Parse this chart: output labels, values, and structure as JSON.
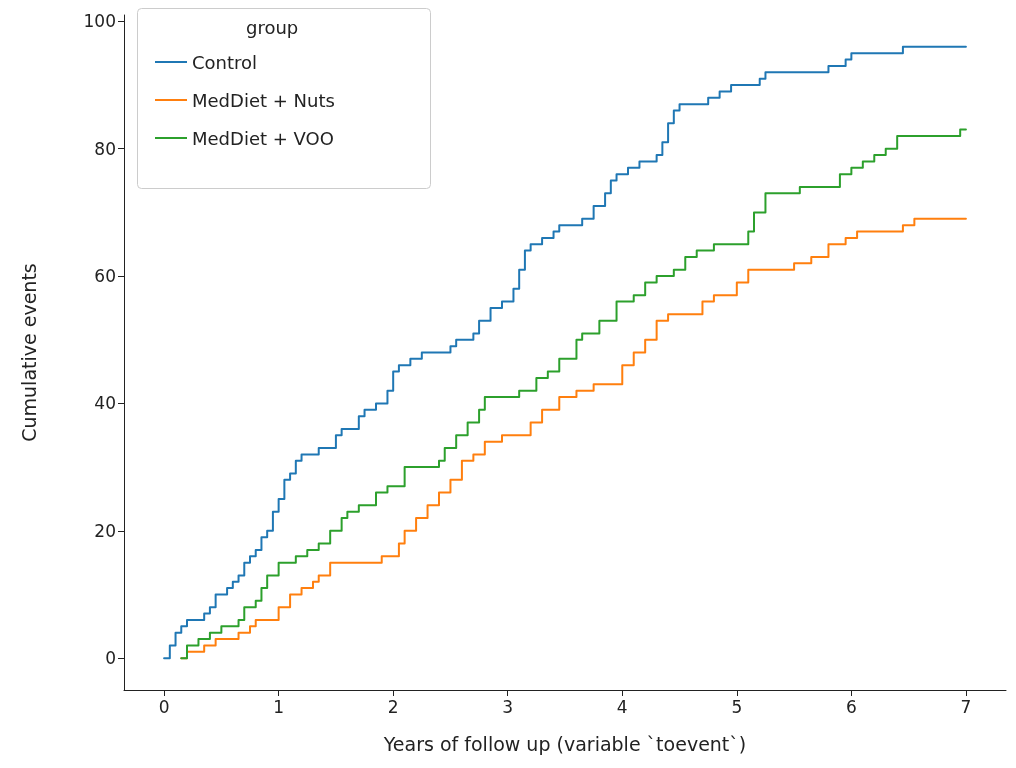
{
  "chart_data": {
    "type": "step",
    "xlabel": "Years of follow up (variable `toevent`)",
    "ylabel": "Cumulative events",
    "legend_title": "group",
    "legend": "top left",
    "grid": false,
    "marker": "none",
    "line_style": "solid",
    "xlim": [
      -0.35,
      7.35
    ],
    "ylim": [
      -5,
      101
    ],
    "xticks": [
      0,
      1,
      2,
      3,
      4,
      5,
      6,
      7
    ],
    "yticks": [
      0,
      20,
      40,
      60,
      80,
      100
    ],
    "series": [
      {
        "name": "Control",
        "color": "#1f77b4",
        "x": [
          0,
          0.05,
          0.1,
          0.15,
          0.2,
          0.35,
          0.4,
          0.45,
          0.55,
          0.6,
          0.65,
          0.7,
          0.75,
          0.8,
          0.85,
          0.9,
          0.95,
          1.0,
          1.05,
          1.1,
          1.15,
          1.2,
          1.35,
          1.5,
          1.55,
          1.7,
          1.75,
          1.85,
          1.95,
          2.0,
          2.05,
          2.15,
          2.25,
          2.5,
          2.55,
          2.7,
          2.75,
          2.85,
          2.95,
          3.05,
          3.1,
          3.15,
          3.2,
          3.3,
          3.4,
          3.45,
          3.65,
          3.75,
          3.85,
          3.9,
          3.95,
          4.05,
          4.15,
          4.3,
          4.35,
          4.4,
          4.45,
          4.5,
          4.75,
          4.85,
          4.95,
          5.2,
          5.25,
          5.8,
          5.95,
          6.0,
          6.45,
          7
        ],
        "values": [
          0,
          2,
          4,
          5,
          6,
          7,
          8,
          10,
          11,
          12,
          13,
          15,
          16,
          17,
          19,
          20,
          23,
          25,
          28,
          29,
          31,
          32,
          33,
          35,
          36,
          38,
          39,
          40,
          42,
          45,
          46,
          47,
          48,
          49,
          50,
          51,
          53,
          55,
          56,
          58,
          61,
          64,
          65,
          66,
          67,
          68,
          69,
          71,
          73,
          75,
          76,
          77,
          78,
          79,
          81,
          84,
          86,
          87,
          88,
          89,
          90,
          91,
          92,
          93,
          94,
          95,
          96,
          96
        ]
      },
      {
        "name": "MedDiet + Nuts",
        "color": "#ff7f0e",
        "x": [
          0.15,
          0.2,
          0.35,
          0.45,
          0.65,
          0.75,
          0.8,
          1.0,
          1.1,
          1.2,
          1.3,
          1.35,
          1.45,
          1.9,
          2.05,
          2.1,
          2.2,
          2.3,
          2.4,
          2.5,
          2.6,
          2.7,
          2.8,
          2.95,
          3.2,
          3.3,
          3.45,
          3.6,
          3.75,
          4.0,
          4.1,
          4.2,
          4.3,
          4.4,
          4.7,
          4.8,
          5.0,
          5.1,
          5.5,
          5.65,
          5.8,
          5.95,
          6.05,
          6.45,
          6.55,
          7
        ],
        "values": [
          0,
          1,
          2,
          3,
          4,
          5,
          6,
          8,
          10,
          11,
          12,
          13,
          15,
          16,
          18,
          20,
          22,
          24,
          26,
          28,
          31,
          32,
          34,
          35,
          37,
          39,
          41,
          42,
          43,
          46,
          48,
          50,
          53,
          54,
          56,
          57,
          59,
          61,
          62,
          63,
          65,
          66,
          67,
          68,
          69,
          69
        ]
      },
      {
        "name": "MedDiet + VOO",
        "color": "#2ca02c",
        "x": [
          0.15,
          0.2,
          0.3,
          0.4,
          0.5,
          0.65,
          0.7,
          0.8,
          0.85,
          0.9,
          1.0,
          1.15,
          1.25,
          1.35,
          1.45,
          1.55,
          1.6,
          1.7,
          1.85,
          1.95,
          2.1,
          2.4,
          2.45,
          2.55,
          2.65,
          2.75,
          2.8,
          3.1,
          3.25,
          3.35,
          3.45,
          3.6,
          3.65,
          3.8,
          3.95,
          4.1,
          4.2,
          4.3,
          4.45,
          4.55,
          4.65,
          4.8,
          5.1,
          5.15,
          5.25,
          5.55,
          5.9,
          6.0,
          6.1,
          6.2,
          6.3,
          6.4,
          6.95,
          7
        ],
        "values": [
          0,
          2,
          3,
          4,
          5,
          6,
          8,
          9,
          11,
          13,
          15,
          16,
          17,
          18,
          20,
          22,
          23,
          24,
          26,
          27,
          30,
          31,
          33,
          35,
          37,
          39,
          41,
          42,
          44,
          45,
          47,
          50,
          51,
          53,
          56,
          57,
          59,
          60,
          61,
          63,
          64,
          65,
          67,
          70,
          73,
          74,
          76,
          77,
          78,
          79,
          80,
          82,
          83,
          83
        ]
      }
    ]
  }
}
